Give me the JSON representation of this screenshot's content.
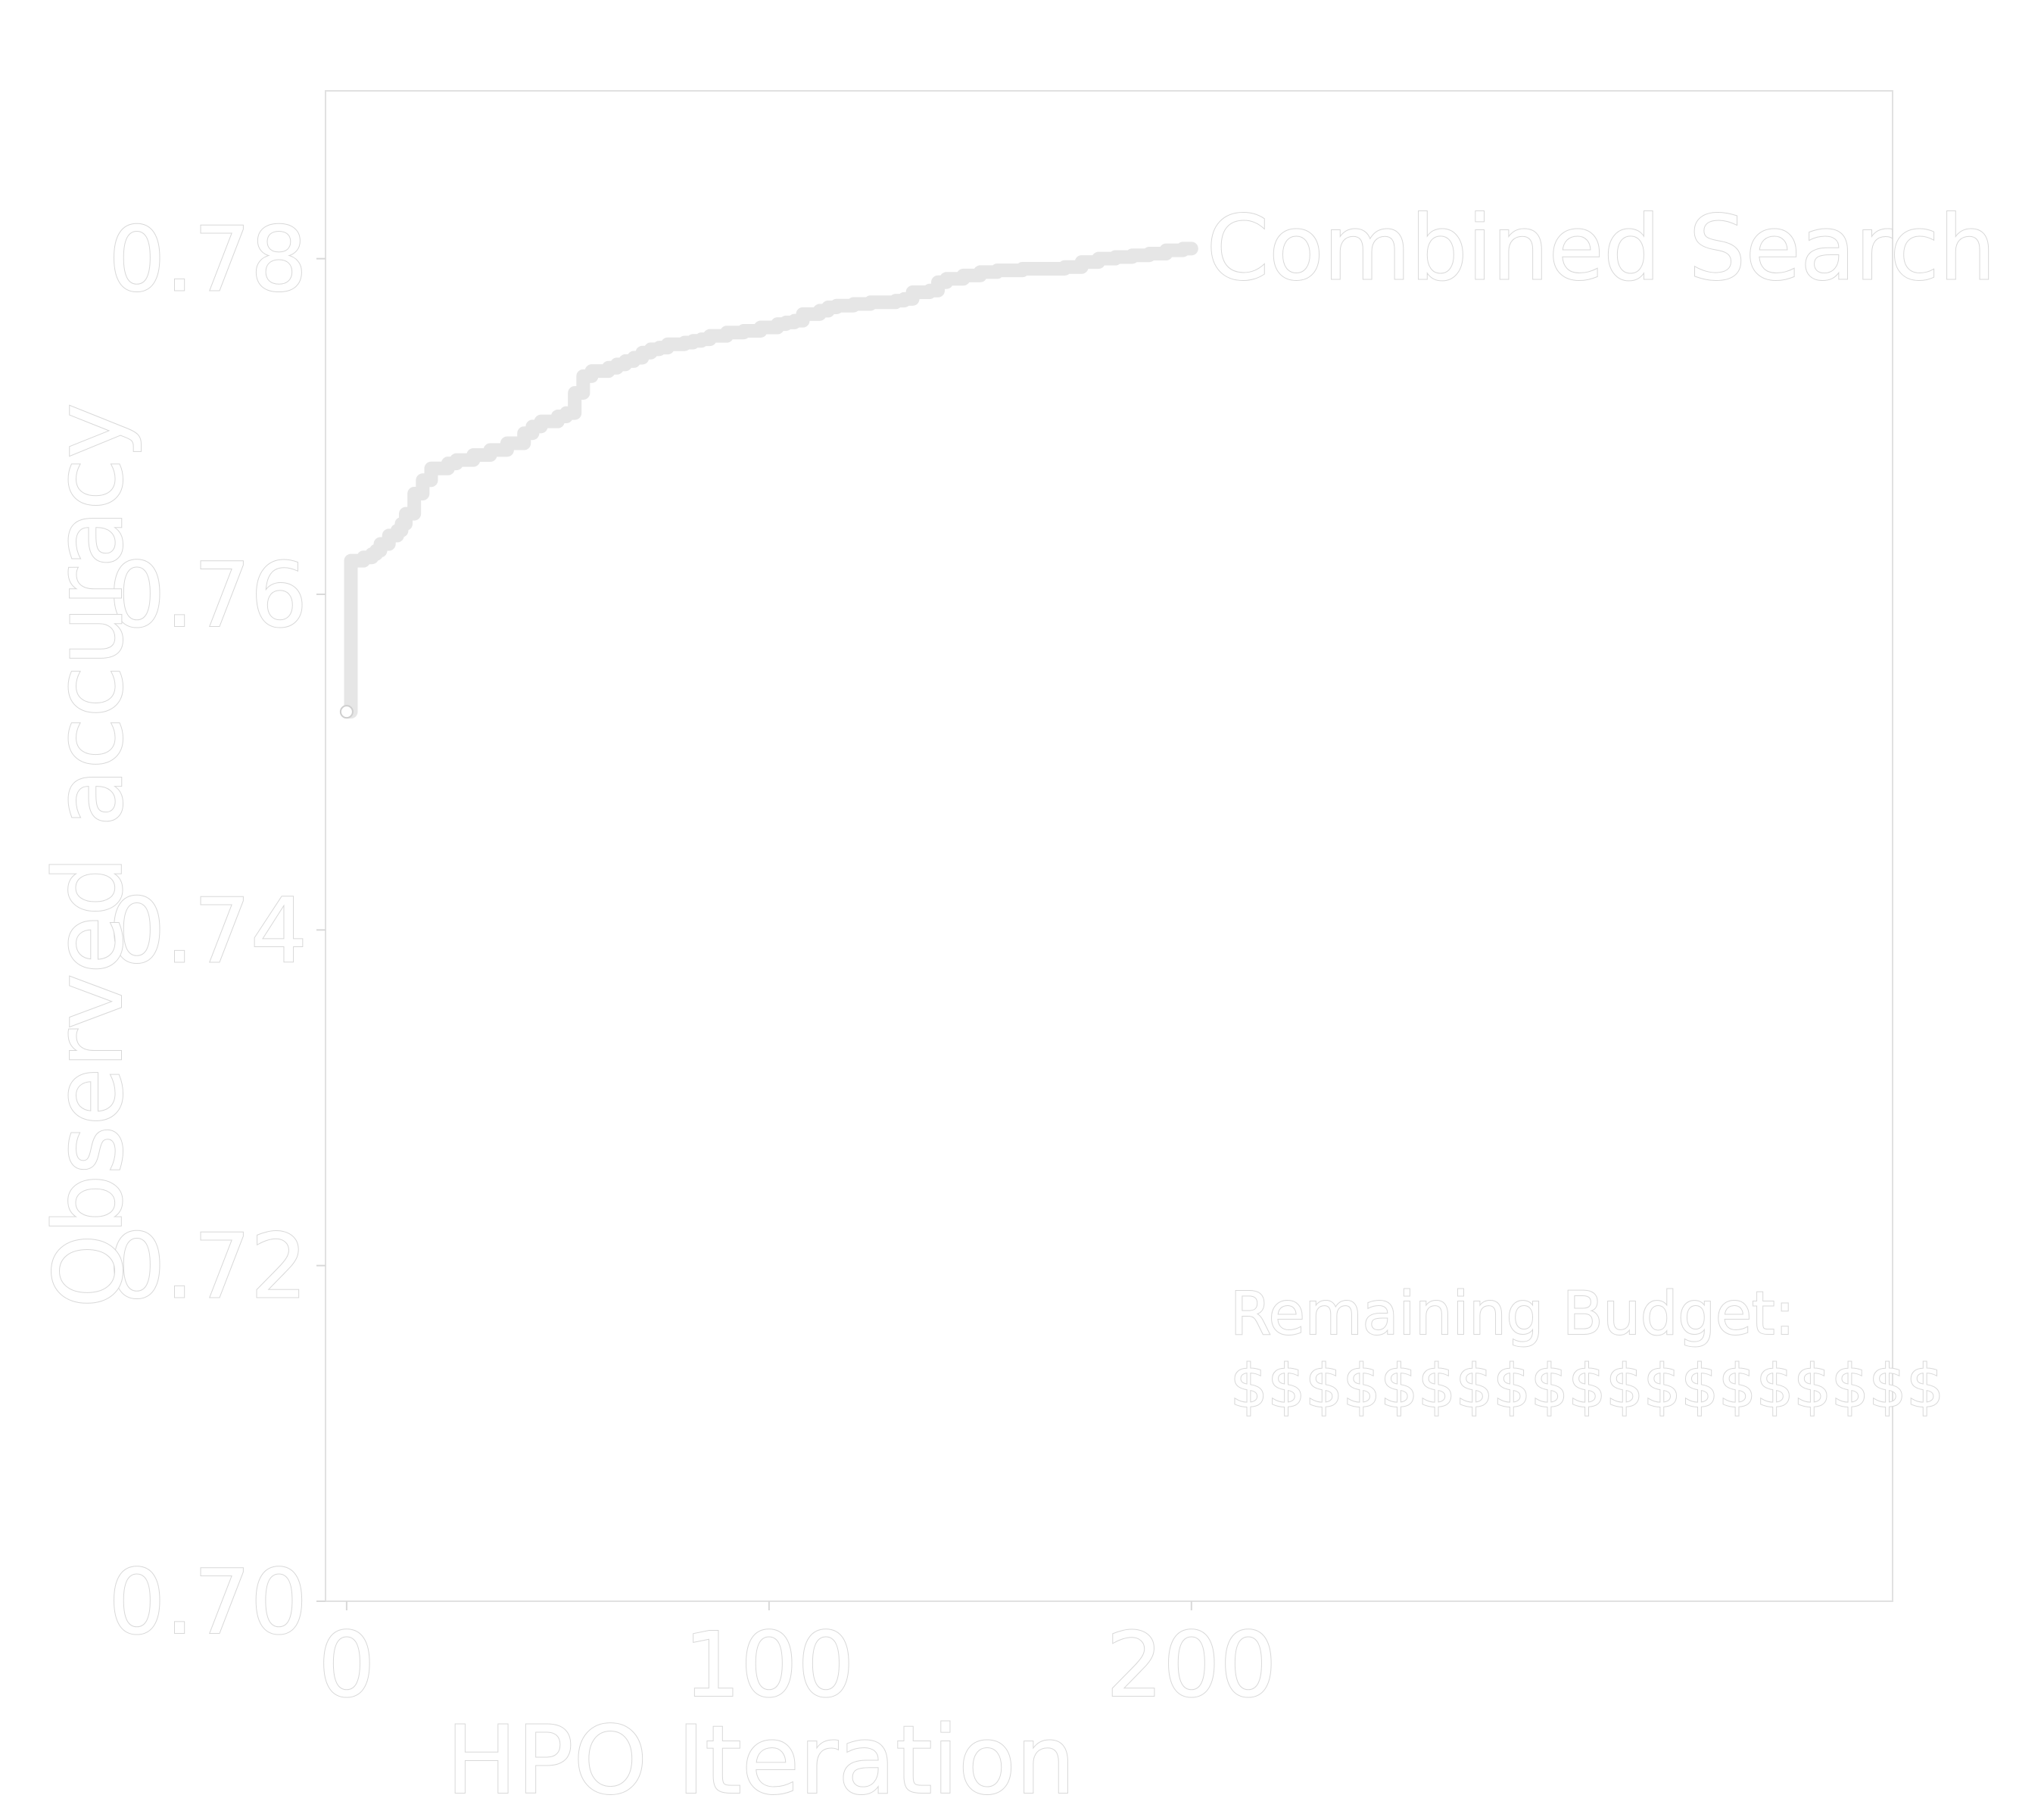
{
  "chart_data": {
    "type": "line",
    "title": "",
    "xlabel": "HPO Iteration",
    "ylabel": "Observed accuracy",
    "xlim": [
      -5,
      366
    ],
    "ylim": [
      0.7,
      0.79
    ],
    "x_ticks": [
      0,
      100,
      200
    ],
    "y_ticks": [
      0.7,
      0.72,
      0.74,
      0.76,
      0.78
    ],
    "x_tick_labels": [
      "0",
      "100",
      "200"
    ],
    "y_tick_labels": [
      "0.70",
      "0.72",
      "0.74",
      "0.76",
      "0.78"
    ],
    "grid": false,
    "legend": "none",
    "series": [
      {
        "name": "Combined Search",
        "color": "#e6e6e6",
        "marker_start": true,
        "x": [
          0,
          1,
          2,
          4,
          6,
          7,
          8,
          10,
          12,
          13,
          14,
          16,
          18,
          20,
          24,
          26,
          30,
          34,
          38,
          42,
          44,
          46,
          50,
          52,
          54,
          56,
          58,
          62,
          64,
          66,
          68,
          70,
          72,
          74,
          76,
          80,
          82,
          84,
          86,
          90,
          94,
          98,
          102,
          104,
          106,
          108,
          112,
          114,
          116,
          120,
          124,
          128,
          130,
          132,
          134,
          138,
          140,
          142,
          146,
          150,
          154,
          160,
          170,
          174,
          178,
          182,
          186,
          190,
          194,
          198,
          200
        ],
        "y": [
          0.753,
          0.762,
          0.762,
          0.7622,
          0.7624,
          0.7626,
          0.763,
          0.7635,
          0.7638,
          0.7642,
          0.7648,
          0.766,
          0.7668,
          0.7675,
          0.7678,
          0.768,
          0.7683,
          0.7686,
          0.769,
          0.7696,
          0.77,
          0.7703,
          0.7706,
          0.7708,
          0.772,
          0.773,
          0.7733,
          0.7735,
          0.7737,
          0.7739,
          0.7741,
          0.7744,
          0.7746,
          0.7747,
          0.7749,
          0.775,
          0.7751,
          0.7752,
          0.7754,
          0.7756,
          0.7757,
          0.7759,
          0.7761,
          0.7762,
          0.7763,
          0.7767,
          0.7769,
          0.7771,
          0.7772,
          0.7773,
          0.7774,
          0.7774,
          0.7775,
          0.7776,
          0.778,
          0.7781,
          0.7786,
          0.7788,
          0.779,
          0.7792,
          0.7793,
          0.7794,
          0.7795,
          0.7798,
          0.78,
          0.7801,
          0.7802,
          0.7803,
          0.7805,
          0.7806,
          0.7806
        ]
      }
    ],
    "annotations": [
      {
        "text": "Remaining Budget:",
        "line2": "$$$$$$$$$$$$$$$$$$$"
      }
    ]
  }
}
